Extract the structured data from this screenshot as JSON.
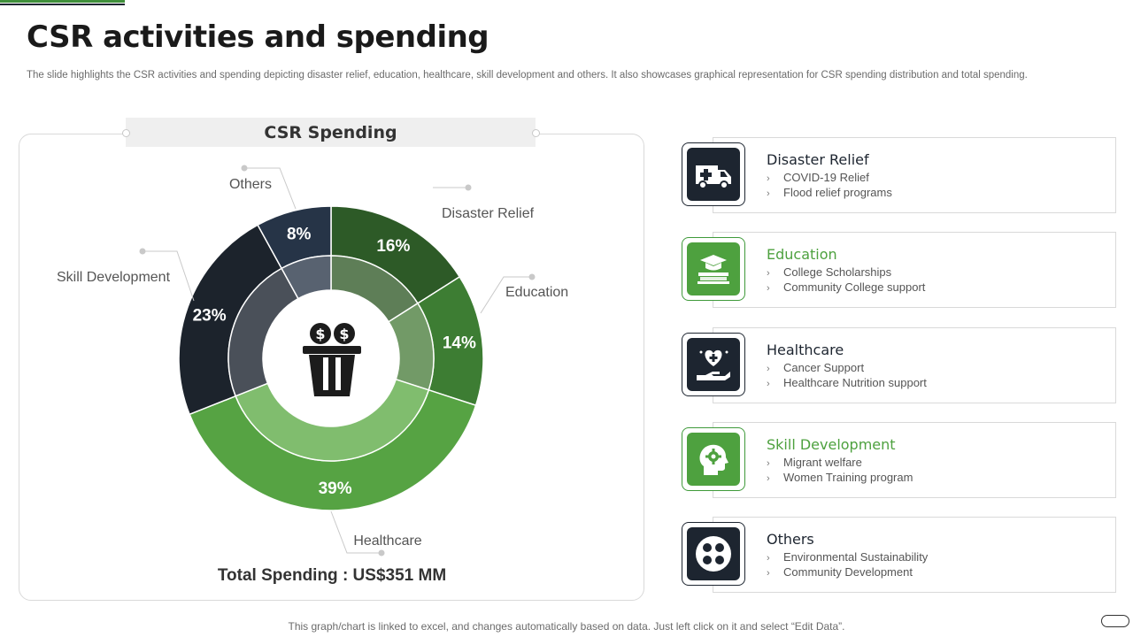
{
  "title": "CSR activities and spending",
  "subtitle": "The slide highlights the CSR activities and spending depicting disaster relief, education, healthcare, skill development and others. It also showcases graphical representation for CSR spending distribution and total spending.",
  "chart_data": {
    "type": "pie",
    "title": "CSR Spending",
    "categories": [
      "Disaster Relief",
      "Education",
      "Healthcare",
      "Skill Development",
      "Others"
    ],
    "values": [
      16,
      14,
      39,
      23,
      8
    ],
    "value_labels": [
      "16%",
      "14%",
      "39%",
      "23%",
      "8%"
    ],
    "unit": "%",
    "colors": [
      "#2d5a27",
      "#3d7d33",
      "#56a343",
      "#1c232c",
      "#263447"
    ],
    "inner_ring_colors": [
      "#5e7e57",
      "#729a67",
      "#80bd6e",
      "#4a5059",
      "#586270"
    ],
    "center_icon": "donation-jar-icon",
    "total_label": "Total Spending : US$351 MM"
  },
  "categories": [
    {
      "name": "Disaster Relief",
      "icon": "ambulance-icon",
      "accent": "#1d2530",
      "items": [
        "COVID-19  Relief",
        "Flood relief programs"
      ]
    },
    {
      "name": "Education",
      "icon": "graduation-books-icon",
      "accent": "#4ea13f",
      "items": [
        "College Scholarships",
        "Community College support"
      ]
    },
    {
      "name": "Healthcare",
      "icon": "heart-care-hand-icon",
      "accent": "#1d2530",
      "items": [
        "Cancer Support",
        "Healthcare Nutrition support"
      ]
    },
    {
      "name": "Skill Development",
      "icon": "head-gear-icon",
      "accent": "#4ea13f",
      "items": [
        "Migrant  welfare",
        "Women Training  program"
      ]
    },
    {
      "name": "Others",
      "icon": "four-dots-icon",
      "accent": "#1d2530",
      "items": [
        "Environmental  Sustainability",
        "Community Development"
      ]
    }
  ],
  "bullet_glyph": "›",
  "footer": "This graph/chart is linked to excel,  and changes automatically based on data. Just left click on it and select “Edit Data”."
}
